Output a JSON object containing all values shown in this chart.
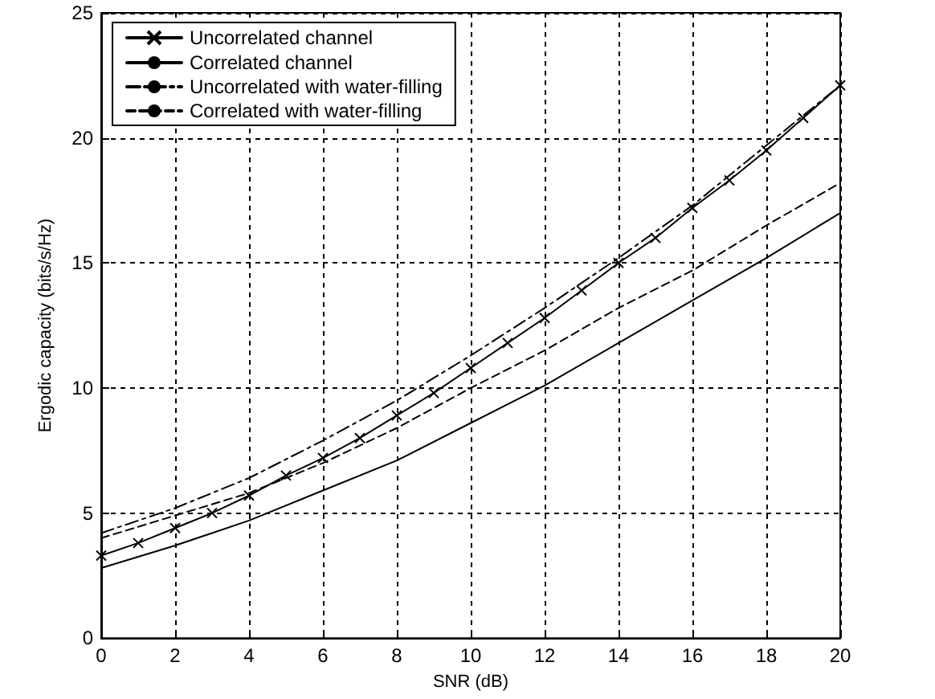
{
  "chart_data": {
    "type": "line",
    "xlabel": "SNR (dB)",
    "ylabel": "Ergodic capacity (bits/s/Hz)",
    "xlim": [
      0,
      20
    ],
    "xticks": [
      0,
      2,
      4,
      6,
      8,
      10,
      12,
      14,
      16,
      18,
      20
    ],
    "ylim": [
      0,
      25
    ],
    "yticks": [
      0,
      5,
      10,
      15,
      20,
      25
    ],
    "grid": true,
    "legend": "top left",
    "series": [
      {
        "name": "Uncorrelated channel",
        "color": "#000000",
        "marker": "cross",
        "line_style": "solid",
        "x": [
          0,
          1,
          2,
          3,
          4,
          5,
          6,
          7,
          8,
          9,
          10,
          11,
          12,
          13,
          14,
          15,
          16,
          17,
          18,
          19,
          20
        ],
        "values": [
          3.3,
          3.8,
          4.4,
          5.0,
          5.7,
          6.5,
          7.2,
          8.0,
          8.9,
          9.8,
          10.8,
          11.8,
          12.8,
          13.9,
          15.0,
          16.0,
          17.2,
          18.3,
          19.5,
          20.8,
          22.1
        ]
      },
      {
        "name": "Correlated channel",
        "color": "#000000",
        "marker": "none",
        "line_style": "solid",
        "x": [
          0,
          2,
          4,
          6,
          8,
          10,
          12,
          14,
          16,
          18,
          20
        ],
        "values": [
          2.8,
          3.7,
          4.7,
          5.9,
          7.1,
          8.6,
          10.1,
          11.8,
          13.5,
          15.2,
          17.0
        ]
      },
      {
        "name": "Uncorrelated with water-filling",
        "color": "#000000",
        "marker": "none",
        "line_style": "dashdot",
        "x": [
          0,
          2,
          4,
          6,
          8,
          10,
          12,
          14,
          16,
          18,
          20
        ],
        "values": [
          4.2,
          5.2,
          6.4,
          7.9,
          9.5,
          11.3,
          13.2,
          15.2,
          17.3,
          19.7,
          22.1
        ]
      },
      {
        "name": "Correlated with water-filling",
        "color": "#000000",
        "marker": "none",
        "line_style": "dashed",
        "x": [
          0,
          2,
          4,
          6,
          8,
          10,
          12,
          14,
          16,
          18,
          20
        ],
        "values": [
          4.0,
          4.9,
          5.8,
          7.0,
          8.4,
          10.0,
          11.5,
          13.2,
          14.7,
          16.5,
          18.2
        ]
      }
    ]
  }
}
